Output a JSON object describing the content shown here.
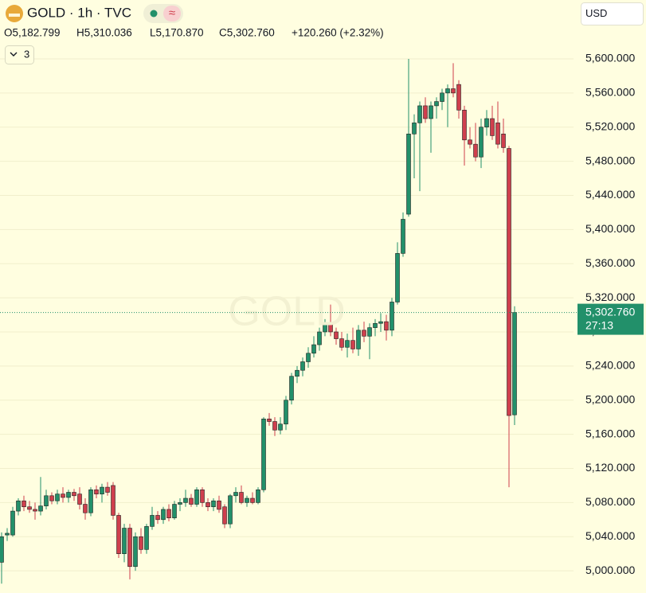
{
  "header": {
    "symbol": "GOLD · 1h · TVC",
    "badge": "≈",
    "open": "O5,182.799",
    "high": "H5,310.036",
    "low": "L5,170.870",
    "close": "C5,302.760",
    "change": "+120.260 (+2.32%)",
    "indicators": "3",
    "currency": "USD"
  },
  "chart_data": {
    "type": "candlestick",
    "watermark": "GOLD",
    "up_color": "#22906a",
    "down_color": "#cf3f4d",
    "grid": true,
    "ylim": [
      4974,
      5669
    ],
    "yticks": [
      {
        "value": 5000,
        "label": "5,000.000"
      },
      {
        "value": 5040,
        "label": "5,040.000"
      },
      {
        "value": 5080,
        "label": "5,080.000"
      },
      {
        "value": 5120,
        "label": "5,120.000"
      },
      {
        "value": 5160,
        "label": "5,160.000"
      },
      {
        "value": 5200,
        "label": "5,200.000"
      },
      {
        "value": 5240,
        "label": "5,240.000"
      },
      {
        "value": 5280,
        "label": "5,280.000"
      },
      {
        "value": 5320,
        "label": "5,320.000"
      },
      {
        "value": 5360,
        "label": "5,360.000"
      },
      {
        "value": 5400,
        "label": "5,400.000"
      },
      {
        "value": 5440,
        "label": "5,440.000"
      },
      {
        "value": 5480,
        "label": "5,480.000"
      },
      {
        "value": 5520,
        "label": "5,520.000"
      },
      {
        "value": 5560,
        "label": "5,560.000"
      },
      {
        "value": 5600,
        "label": "5,600.000"
      }
    ],
    "last_price": {
      "value": 5302.76,
      "label": "5,302.760",
      "countdown": "27:13"
    },
    "open": [
      5010,
      5042,
      5042,
      5070,
      5082,
      5075,
      5072,
      5070,
      5076,
      5088,
      5082,
      5090,
      5086,
      5092,
      5090,
      5078,
      5068,
      5095,
      5090,
      5098,
      5100,
      5065,
      5020,
      5050,
      5005,
      5040,
      5025,
      5052,
      5065,
      5060,
      5072,
      5062,
      5078,
      5080,
      5085,
      5078,
      5095,
      5080,
      5075,
      5082,
      5075,
      5055,
      5088,
      5092,
      5080,
      5085,
      5080,
      5095,
      5178,
      5175,
      5165,
      5172,
      5200,
      5228,
      5235,
      5245,
      5255,
      5265,
      5280,
      5290,
      5280,
      5272,
      5262,
      5270,
      5260,
      5282,
      5275,
      5285,
      5290,
      5292,
      5282,
      5315,
      5372,
      5418,
      5512,
      5525,
      5545,
      5530,
      5545,
      5550,
      5560,
      5565,
      5570,
      5540,
      5505,
      5500,
      5485,
      5520,
      5530,
      5525,
      5512,
      5495,
      5182.799
    ],
    "high": [
      5045,
      5050,
      5075,
      5085,
      5088,
      5082,
      5080,
      5110,
      5095,
      5092,
      5095,
      5098,
      5095,
      5096,
      5098,
      5085,
      5098,
      5100,
      5102,
      5104,
      5104,
      5068,
      5055,
      5055,
      5045,
      5050,
      5055,
      5075,
      5070,
      5075,
      5078,
      5082,
      5085,
      5095,
      5090,
      5098,
      5098,
      5085,
      5085,
      5088,
      5078,
      5090,
      5098,
      5100,
      5088,
      5092,
      5098,
      5180,
      5185,
      5180,
      5180,
      5205,
      5232,
      5240,
      5250,
      5262,
      5275,
      5285,
      5295,
      5312,
      5285,
      5280,
      5278,
      5285,
      5288,
      5292,
      5290,
      5295,
      5302,
      5300,
      5320,
      5385,
      5420,
      5600,
      5535,
      5550,
      5555,
      5550,
      5555,
      5565,
      5570,
      5595,
      5575,
      5545,
      5520,
      5525,
      5530,
      5540,
      5545,
      5550,
      5530,
      5498,
      5310.036
    ],
    "low": [
      4985,
      5035,
      5040,
      5065,
      5070,
      5068,
      5060,
      5065,
      5072,
      5078,
      5078,
      5080,
      5080,
      5082,
      5072,
      5060,
      5064,
      5085,
      5080,
      5088,
      5060,
      5015,
      5010,
      4990,
      5000,
      5020,
      5020,
      5048,
      5055,
      5055,
      5058,
      5060,
      5070,
      5075,
      5075,
      5075,
      5075,
      5070,
      5070,
      5068,
      5050,
      5050,
      5080,
      5078,
      5075,
      5078,
      5078,
      5092,
      5170,
      5158,
      5160,
      5165,
      5195,
      5220,
      5228,
      5238,
      5250,
      5258,
      5275,
      5275,
      5265,
      5258,
      5250,
      5255,
      5252,
      5268,
      5248,
      5275,
      5280,
      5270,
      5275,
      5312,
      5368,
      5415,
      5460,
      5445,
      5525,
      5490,
      5530,
      5540,
      5520,
      5555,
      5530,
      5475,
      5495,
      5480,
      5472,
      5510,
      5505,
      5495,
      5490,
      5098,
      5170.87
    ],
    "close": [
      5040,
      5044,
      5070,
      5082,
      5075,
      5072,
      5070,
      5076,
      5088,
      5082,
      5090,
      5086,
      5092,
      5088,
      5078,
      5068,
      5095,
      5090,
      5098,
      5092,
      5065,
      5020,
      5050,
      5005,
      5040,
      5025,
      5052,
      5065,
      5060,
      5072,
      5062,
      5078,
      5080,
      5085,
      5078,
      5095,
      5080,
      5075,
      5082,
      5072,
      5055,
      5088,
      5092,
      5080,
      5085,
      5080,
      5095,
      5178,
      5175,
      5165,
      5172,
      5200,
      5228,
      5235,
      5245,
      5255,
      5265,
      5280,
      5290,
      5280,
      5272,
      5262,
      5270,
      5260,
      5282,
      5275,
      5285,
      5290,
      5292,
      5282,
      5315,
      5372,
      5412,
      5512,
      5525,
      5545,
      5530,
      5545,
      5550,
      5560,
      5565,
      5560,
      5540,
      5505,
      5500,
      5485,
      5520,
      5530,
      5510,
      5500,
      5496,
      5182,
      5302.76
    ]
  }
}
